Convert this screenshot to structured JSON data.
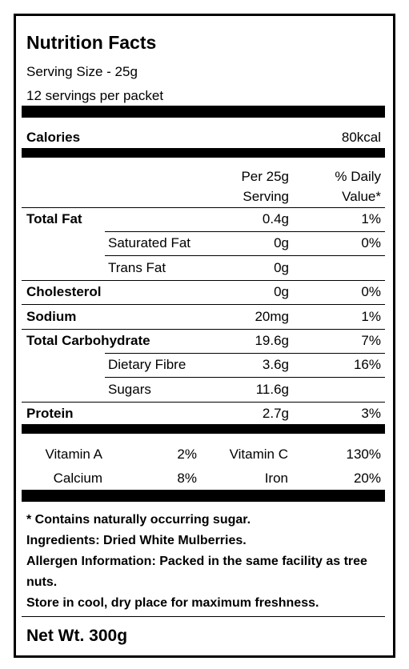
{
  "title": "Nutrition Facts",
  "serving_size": "Serving Size - 25g",
  "servings": "12 servings per packet",
  "calories": {
    "label": "Calories",
    "value": "80kcal"
  },
  "table_header": {
    "amount": [
      "Per 25g",
      "Serving"
    ],
    "daily_value": [
      "% Daily",
      "Value*"
    ]
  },
  "nutrients": [
    {
      "name": "Total Fat",
      "amount": "0.4g",
      "daily_value": "1%",
      "sub": false
    },
    {
      "name": "Saturated Fat",
      "amount": "0g",
      "daily_value": "0%",
      "sub": true
    },
    {
      "name": "Trans Fat",
      "amount": "0g",
      "sub": true
    },
    {
      "name": "Cholesterol",
      "amount": "0g",
      "daily_value": "0%",
      "sub": false
    },
    {
      "name": "Sodium",
      "amount": "20mg",
      "daily_value": "1%",
      "sub": false
    },
    {
      "name": "Total Carbohydrate",
      "amount": "19.6g",
      "daily_value": "7%",
      "sub": false
    },
    {
      "name": "Dietary Fibre",
      "amount": "3.6g",
      "daily_value": "16%",
      "sub": true
    },
    {
      "name": "Sugars",
      "amount": "11.6g",
      "sub": true
    },
    {
      "name": "Protein",
      "amount": "2.7g",
      "daily_value": "3%",
      "sub": false
    }
  ],
  "vitamins": [
    {
      "name": "Vitamin A",
      "value": "2%"
    },
    {
      "name": "Vitamin C",
      "value": "130%"
    },
    {
      "name": "Calcium",
      "value": "8%"
    },
    {
      "name": "Iron",
      "value": "20%"
    }
  ],
  "footnotes": [
    "* Contains naturally occurring sugar.",
    "Ingredients: Dried White Mulberries.",
    "Allergen Information: Packed in the same facility as tree nuts.",
    "Store in cool, dry place for maximum freshness."
  ],
  "net_weight": "Net Wt. 300g"
}
